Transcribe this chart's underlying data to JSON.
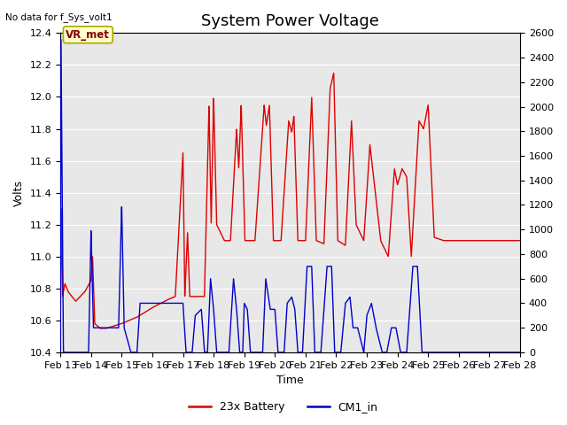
{
  "title": "System Power Voltage",
  "top_left_text": "No data for f_Sys_volt1",
  "ylabel_left": "Volts",
  "xlabel": "Time",
  "ylim_left": [
    10.4,
    12.4
  ],
  "ylim_right": [
    0,
    2600
  ],
  "yticks_left": [
    10.4,
    10.6,
    10.8,
    11.0,
    11.2,
    11.4,
    11.6,
    11.8,
    12.0,
    12.2,
    12.4
  ],
  "yticks_right": [
    0,
    200,
    400,
    600,
    800,
    1000,
    1200,
    1400,
    1600,
    1800,
    2000,
    2200,
    2400,
    2600
  ],
  "xtick_labels": [
    "Feb 13",
    "Feb 14",
    "Feb 15",
    "Feb 16",
    "Feb 17",
    "Feb 18",
    "Feb 19",
    "Feb 20",
    "Feb 21",
    "Feb 22",
    "Feb 23",
    "Feb 24",
    "Feb 25",
    "Feb 26",
    "Feb 27",
    "Feb 28"
  ],
  "bg_color": "#e8e8e8",
  "red_color": "#dd0000",
  "blue_color": "#0000cc",
  "annotation_box_color": "#ffffcc",
  "annotation_box_edge": "#aaaa00",
  "annotation_text": "VR_met",
  "annotation_text_color": "#880000",
  "legend_labels": [
    "23x Battery",
    "CM1_in"
  ],
  "title_fontsize": 13,
  "label_fontsize": 9,
  "tick_fontsize": 8
}
